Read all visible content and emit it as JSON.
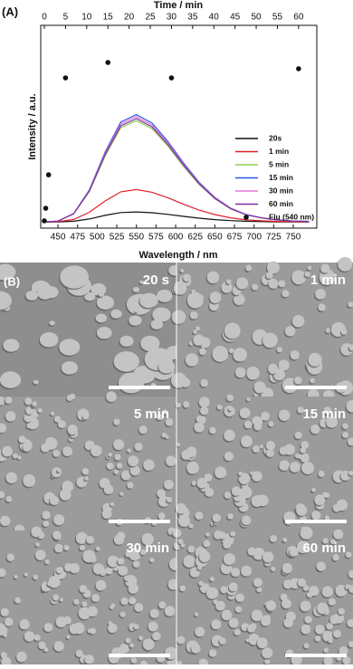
{
  "chart_data": {
    "type": "line",
    "panel_label": "(A)",
    "xlabel": "Wavelength / nm",
    "ylabel": "Intensity / a.u.",
    "x2label": "Time / min",
    "xlim": [
      428,
      780
    ],
    "xticks": [
      450,
      475,
      500,
      525,
      550,
      575,
      600,
      625,
      650,
      675,
      700,
      725,
      750
    ],
    "x2lim": [
      -0.85,
      64.3
    ],
    "x2ticks": [
      0,
      5,
      10,
      15,
      20,
      25,
      30,
      35,
      40,
      45,
      50,
      55,
      60
    ],
    "ylim": [
      0,
      1
    ],
    "x": [
      430,
      450,
      470,
      490,
      510,
      530,
      550,
      570,
      590,
      610,
      630,
      650,
      670,
      690,
      710,
      730,
      750,
      770
    ],
    "series": [
      {
        "name": "20s",
        "color": "#111111",
        "values": [
          0.03,
          0.031,
          0.034,
          0.045,
          0.063,
          0.077,
          0.08,
          0.076,
          0.068,
          0.058,
          0.049,
          0.042,
          0.037,
          0.034,
          0.032,
          0.031,
          0.031,
          0.03
        ]
      },
      {
        "name": "1 min",
        "color": "#e0202a",
        "values": [
          0.03,
          0.032,
          0.043,
          0.078,
          0.134,
          0.179,
          0.19,
          0.177,
          0.15,
          0.118,
          0.089,
          0.067,
          0.051,
          0.041,
          0.036,
          0.033,
          0.032,
          0.031
        ]
      },
      {
        "name": "5 min",
        "color": "#8fd14f",
        "values": [
          0.03,
          0.035,
          0.07,
          0.18,
          0.355,
          0.495,
          0.53,
          0.49,
          0.405,
          0.305,
          0.215,
          0.145,
          0.095,
          0.065,
          0.05,
          0.04,
          0.035,
          0.033
        ]
      },
      {
        "name": "15 min",
        "color": "#2f55e0",
        "values": [
          0.03,
          0.035,
          0.072,
          0.189,
          0.375,
          0.523,
          0.56,
          0.518,
          0.428,
          0.322,
          0.226,
          0.152,
          0.099,
          0.067,
          0.051,
          0.041,
          0.035,
          0.033
        ]
      },
      {
        "name": "30 min",
        "color": "#e27ad6",
        "values": [
          0.03,
          0.035,
          0.072,
          0.186,
          0.368,
          0.514,
          0.55,
          0.508,
          0.42,
          0.316,
          0.222,
          0.15,
          0.098,
          0.066,
          0.051,
          0.04,
          0.035,
          0.033
        ]
      },
      {
        "name": "60 min",
        "color": "#7a2fa0",
        "values": [
          0.03,
          0.035,
          0.071,
          0.183,
          0.362,
          0.504,
          0.54,
          0.499,
          0.413,
          0.311,
          0.219,
          0.147,
          0.096,
          0.066,
          0.05,
          0.04,
          0.035,
          0.033
        ]
      },
      {
        "name": "Flu (540 nm)",
        "color": "#111111",
        "type": "scatter",
        "xaxis": "x2",
        "x": [
          0,
          0.33,
          1,
          5,
          15,
          30,
          60
        ],
        "values": [
          0.036,
          0.098,
          0.263,
          0.741,
          0.817,
          0.741,
          0.786
        ]
      }
    ]
  },
  "panel_b": {
    "label": "(B)",
    "images": [
      {
        "label": "20 s"
      },
      {
        "label": "1 min"
      },
      {
        "label": "5 min"
      },
      {
        "label": "15 min"
      },
      {
        "label": "30 min"
      },
      {
        "label": "60 min"
      }
    ]
  }
}
